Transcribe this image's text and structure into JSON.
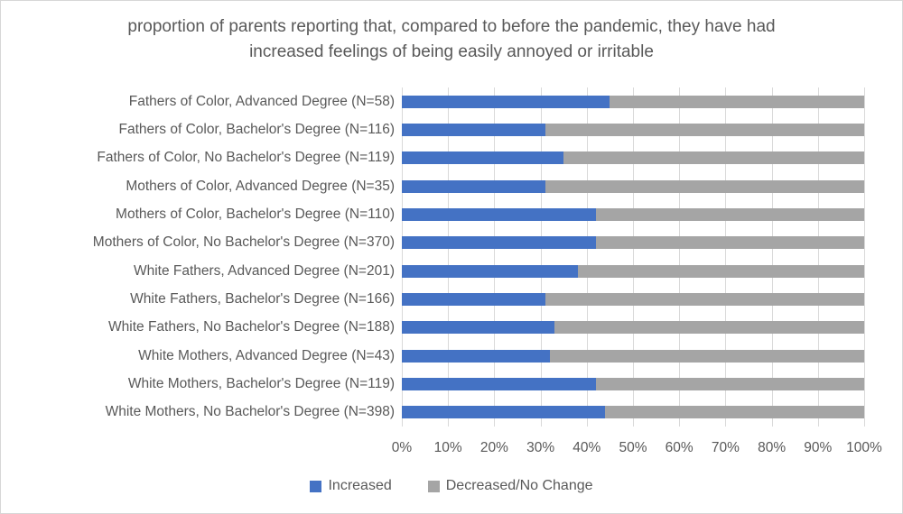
{
  "chart_data": {
    "type": "bar",
    "orientation": "horizontal",
    "stacked": true,
    "title": "proportion of parents reporting that, compared to before the pandemic, they have had increased feelings of being easily annoyed or irritable",
    "categories": [
      "Fathers of Color, Advanced Degree (N=58)",
      "Fathers of Color, Bachelor's Degree (N=116)",
      "Fathers of Color, No Bachelor's Degree (N=119)",
      "Mothers of Color, Advanced Degree (N=35)",
      "Mothers of Color, Bachelor's Degree (N=110)",
      "Mothers of Color, No Bachelor's Degree (N=370)",
      "White Fathers, Advanced Degree (N=201)",
      "White Fathers, Bachelor's Degree (N=166)",
      "White Fathers, No Bachelor's Degree (N=188)",
      "White Mothers, Advanced Degree (N=43)",
      "White Mothers, Bachelor's Degree (N=119)",
      "White Mothers, No Bachelor's Degree (N=398)"
    ],
    "series": [
      {
        "name": "Increased",
        "color": "#4472C4",
        "values": [
          45,
          31,
          35,
          31,
          42,
          42,
          38,
          31,
          33,
          32,
          42,
          44
        ]
      },
      {
        "name": "Decreased/No Change",
        "color": "#A5A5A5",
        "values": [
          55,
          69,
          65,
          69,
          58,
          58,
          62,
          69,
          67,
          68,
          58,
          56
        ]
      }
    ],
    "x_ticks": [
      "0%",
      "10%",
      "20%",
      "30%",
      "40%",
      "50%",
      "60%",
      "70%",
      "80%",
      "90%",
      "100%"
    ],
    "xlim": [
      0,
      100
    ],
    "grid": true,
    "legend_position": "bottom"
  },
  "colors": {
    "increased": "#4472C4",
    "decreased": "#A5A5A5",
    "text": "#595959",
    "gridline": "#D9D9D9",
    "border": "#D7D7D7",
    "background": "#FFFFFF"
  }
}
